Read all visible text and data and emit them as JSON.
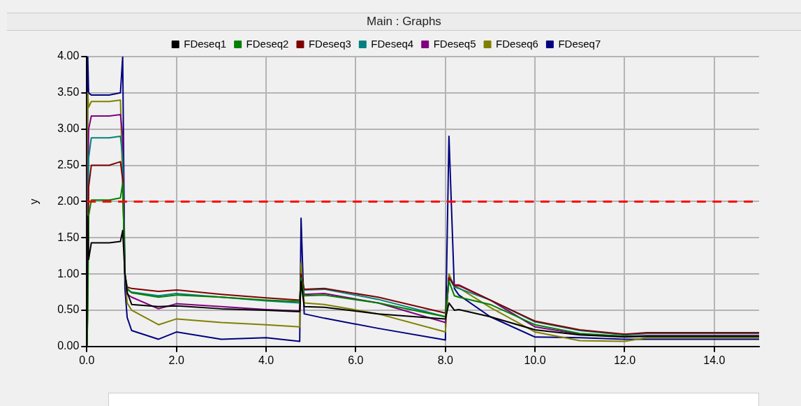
{
  "chart_data": {
    "type": "line",
    "title": "Main : Graphs",
    "ylabel": "y",
    "x": [
      0,
      0.02,
      0.04,
      0.1,
      0.5,
      0.75,
      0.8,
      0.85,
      0.9,
      1.0,
      1.6,
      2.0,
      3.0,
      4.0,
      4.75,
      4.78,
      4.85,
      5.3,
      6.5,
      8.0,
      8.08,
      8.2,
      8.3,
      9.0,
      10.0,
      11.0,
      12.0,
      12.5,
      15.0
    ],
    "series": [
      {
        "name": "FDeseq1",
        "color": "#000000",
        "values": [
          0,
          1.8,
          1.2,
          1.43,
          1.43,
          1.45,
          1.6,
          1.0,
          0.75,
          0.58,
          0.55,
          0.56,
          0.52,
          0.5,
          0.48,
          0.9,
          0.55,
          0.54,
          0.45,
          0.38,
          0.6,
          0.5,
          0.51,
          0.41,
          0.23,
          0.16,
          0.13,
          0.14,
          0.14
        ]
      },
      {
        "name": "FDeseq2",
        "color": "#008000",
        "values": [
          0,
          0.4,
          1.8,
          2.02,
          2.02,
          2.05,
          2.25,
          1.0,
          0.8,
          0.74,
          0.68,
          0.71,
          0.68,
          0.64,
          0.62,
          0.95,
          0.7,
          0.71,
          0.6,
          0.41,
          0.9,
          0.7,
          0.68,
          0.58,
          0.3,
          0.18,
          0.14,
          0.14,
          0.14
        ]
      },
      {
        "name": "FDeseq3",
        "color": "#800000",
        "values": [
          0,
          0.8,
          2.2,
          2.5,
          2.5,
          2.55,
          2.3,
          1.0,
          0.82,
          0.8,
          0.76,
          0.78,
          0.72,
          0.67,
          0.64,
          1.0,
          0.79,
          0.8,
          0.68,
          0.46,
          0.95,
          0.84,
          0.84,
          0.64,
          0.35,
          0.23,
          0.17,
          0.19,
          0.19
        ]
      },
      {
        "name": "FDeseq4",
        "color": "#008080",
        "values": [
          0,
          1.2,
          2.6,
          2.88,
          2.88,
          2.9,
          2.6,
          1.0,
          0.78,
          0.75,
          0.7,
          0.73,
          0.68,
          0.63,
          0.6,
          1.0,
          0.78,
          0.79,
          0.65,
          0.41,
          0.95,
          0.82,
          0.8,
          0.64,
          0.34,
          0.22,
          0.16,
          0.18,
          0.18
        ]
      },
      {
        "name": "FDeseq5",
        "color": "#800080",
        "values": [
          0,
          2.0,
          3.0,
          3.18,
          3.18,
          3.2,
          2.9,
          1.0,
          0.72,
          0.68,
          0.52,
          0.59,
          0.55,
          0.51,
          0.49,
          1.0,
          0.72,
          0.73,
          0.6,
          0.33,
          0.95,
          0.85,
          0.85,
          0.64,
          0.27,
          0.17,
          0.14,
          0.15,
          0.15
        ]
      },
      {
        "name": "FDeseq6",
        "color": "#808000",
        "values": [
          0,
          3.5,
          3.3,
          3.38,
          3.38,
          3.4,
          2.25,
          1.0,
          0.6,
          0.5,
          0.3,
          0.38,
          0.33,
          0.3,
          0.27,
          1.15,
          0.6,
          0.58,
          0.45,
          0.2,
          1.0,
          0.83,
          0.81,
          0.54,
          0.2,
          0.08,
          0.07,
          0.12,
          0.12
        ]
      },
      {
        "name": "FDeseq7",
        "color": "#000080",
        "values": [
          0,
          4.0,
          3.5,
          3.47,
          3.47,
          3.5,
          4.0,
          0.8,
          0.4,
          0.22,
          0.1,
          0.2,
          0.1,
          0.12,
          0.07,
          1.77,
          0.45,
          0.39,
          0.25,
          0.09,
          2.9,
          0.8,
          0.71,
          0.41,
          0.13,
          0.12,
          0.1,
          0.1,
          0.1
        ]
      }
    ],
    "xlim": [
      0,
      15
    ],
    "xticks": [
      {
        "value": 0,
        "label": "0.0"
      },
      {
        "value": 2,
        "label": "2.0"
      },
      {
        "value": 4,
        "label": "4.0"
      },
      {
        "value": 6,
        "label": "6.0"
      },
      {
        "value": 8,
        "label": "8.0"
      },
      {
        "value": 10,
        "label": "10.0"
      },
      {
        "value": 12,
        "label": "12.0"
      },
      {
        "value": 14,
        "label": "14.0"
      }
    ],
    "ylim": [
      0,
      4
    ],
    "yticks": [
      {
        "value": 0,
        "label": "0.00"
      },
      {
        "value": 0.5,
        "label": "0.50"
      },
      {
        "value": 1,
        "label": "1.00"
      },
      {
        "value": 1.5,
        "label": "1.50"
      },
      {
        "value": 2,
        "label": "2.00"
      },
      {
        "value": 2.5,
        "label": "2.50"
      },
      {
        "value": 3,
        "label": "3.00"
      },
      {
        "value": 3.5,
        "label": "3.50"
      },
      {
        "value": 4,
        "label": "4.00"
      }
    ],
    "ref_lines": [
      {
        "axis": "y",
        "value": 2,
        "color": "#ff0000",
        "line_style": "dashed"
      }
    ],
    "grid": true,
    "legend": "top",
    "marker": "none",
    "line_style": "solid"
  }
}
